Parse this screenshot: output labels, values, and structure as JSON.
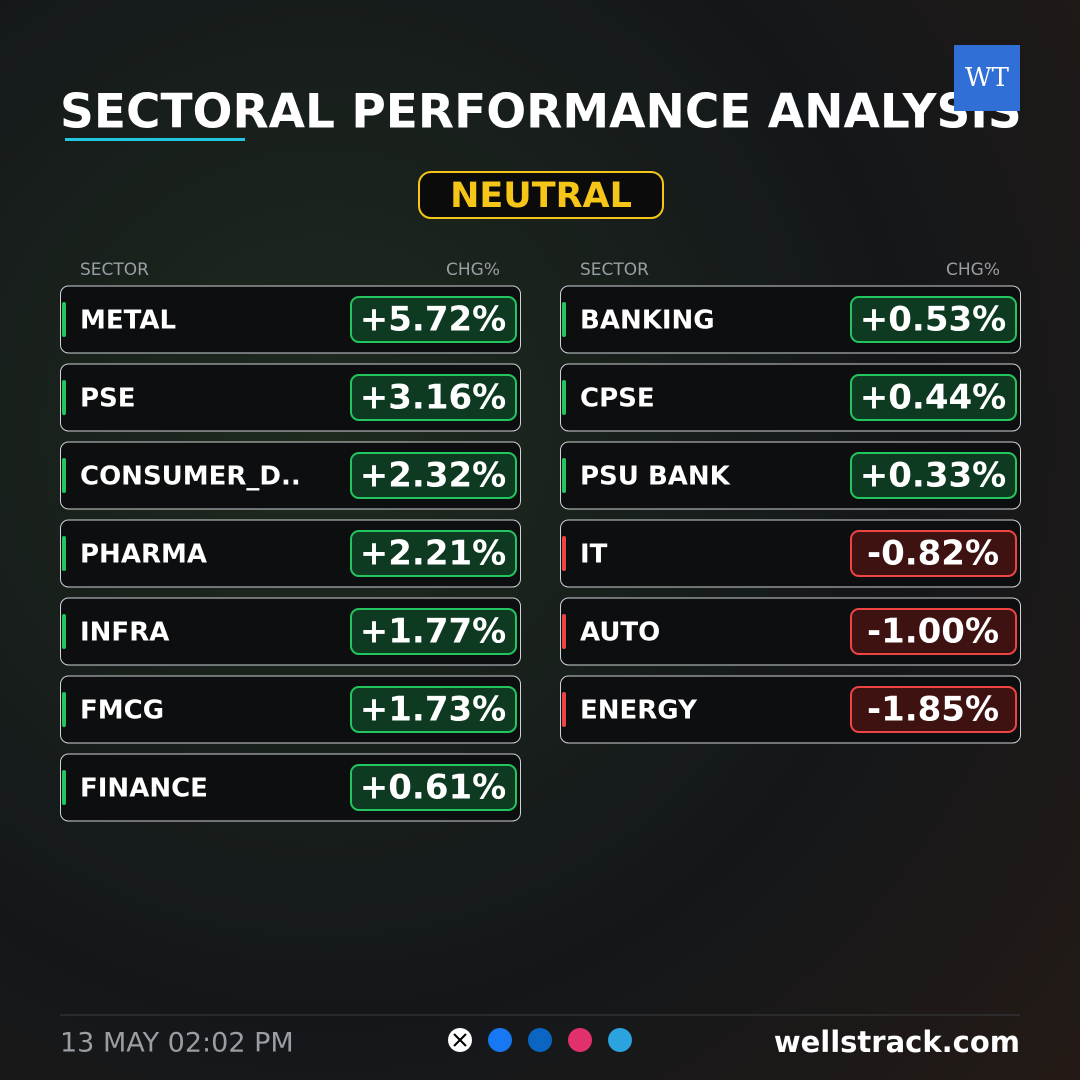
{
  "header": {
    "title": "SECTORAL PERFORMANCE ANALYSIS",
    "logo": "WT",
    "badge": "NEUTRAL"
  },
  "columns": [
    {
      "sector_header": "SECTOR",
      "change_header": "CHG%",
      "rows": [
        {
          "sector": "METAL",
          "change": "+5.72%",
          "color": "#22c55e"
        },
        {
          "sector": "PSE",
          "change": "+3.16%",
          "color": "#22c55e"
        },
        {
          "sector": "CONSUMER_D..",
          "change": "+2.32%",
          "color": "#22c55e"
        },
        {
          "sector": "PHARMA",
          "change": "+2.21%",
          "color": "#22c55e"
        },
        {
          "sector": "INFRA",
          "change": "+1.77%",
          "color": "#22c55e"
        },
        {
          "sector": "FMCG",
          "change": "+1.73%",
          "color": "#22c55e"
        },
        {
          "sector": "FINANCE",
          "change": "+0.61%",
          "color": "#22c55e"
        }
      ]
    },
    {
      "sector_header": "SECTOR",
      "change_header": "CHG%",
      "rows": [
        {
          "sector": "BANKING",
          "change": "+0.53%",
          "color": "#22c55e"
        },
        {
          "sector": "CPSE",
          "change": "+0.44%",
          "color": "#22c55e"
        },
        {
          "sector": "PSU BANK",
          "change": "+0.33%",
          "color": "#22c55e"
        },
        {
          "sector": "IT",
          "change": "-0.82%",
          "color": "#ef4444"
        },
        {
          "sector": "AUTO",
          "change": "-1.00%",
          "color": "#ef4444"
        },
        {
          "sector": "ENERGY",
          "change": "-1.85%",
          "color": "#ef4444"
        }
      ]
    }
  ],
  "footer": {
    "datetime": "13 MAY 02:02 PM",
    "website": "wellstrack.com"
  }
}
